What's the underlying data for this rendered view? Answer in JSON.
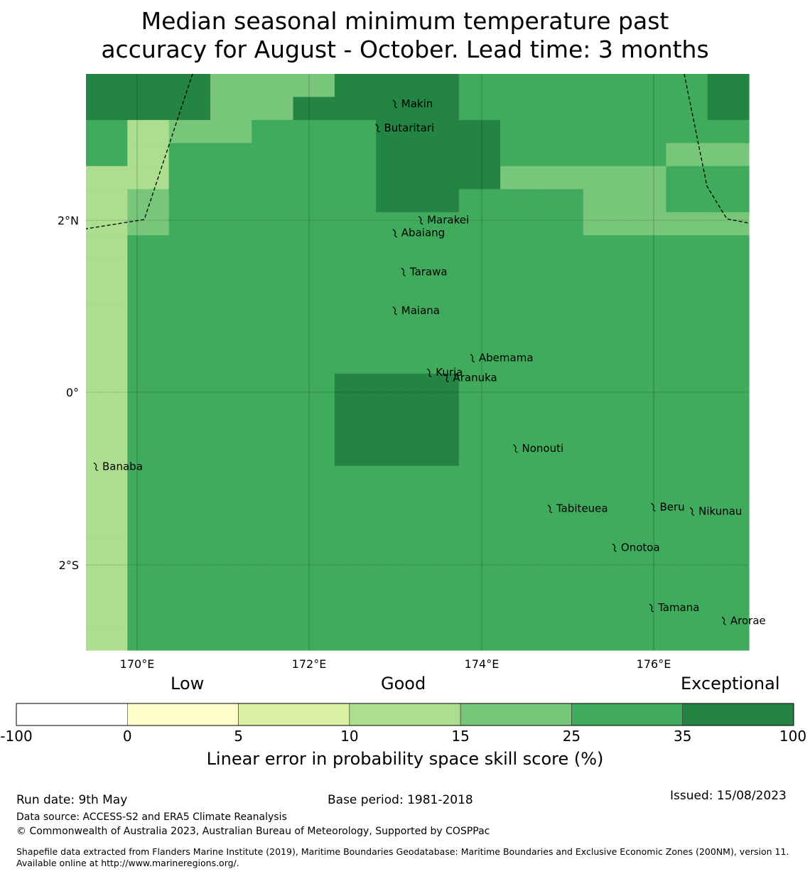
{
  "title_line1": "Median seasonal minimum temperature past",
  "title_line2": "accuracy for August - October. Lead time: 3 months",
  "axes": {
    "lon_ticks": [
      "170°E",
      "172°E",
      "174°E",
      "176°E"
    ],
    "lat_ticks": [
      "2°N",
      "0°",
      "2°S"
    ]
  },
  "colors": {
    "c_neg": "#ffffff",
    "c_0_5": "#ffffcc",
    "c_5_10": "#d9f0a3",
    "c_10_15": "#addd8e",
    "c_15_25": "#78c679",
    "c_25_35": "#41ab5d",
    "c_35_100": "#238443"
  },
  "grid_rows": [
    "6664446665555556",
    "6664466665555556",
    "5344555666555555",
    "5355555666555544",
    "3355555666444455",
    "3455555665554455",
    "3455555555554444",
    "3555555555555555",
    "3555555555555555",
    "3555555555555555",
    "3555555555555555",
    "3555555555555555",
    "3555555555555555",
    "3555556665555555",
    "3555556665555555",
    "3555556665555555",
    "3555556665555555",
    "3555555555555555",
    "3555555555555555",
    "3555555555555555",
    "3555555555555555",
    "3555555555555555",
    "3555555555555555",
    "3555555555555555",
    "3555555555555555"
  ],
  "islands": [
    {
      "name": "Makin",
      "lon": 173.0,
      "lat": 3.35
    },
    {
      "name": "Butaritari",
      "lon": 172.8,
      "lat": 3.07
    },
    {
      "name": "Marakei",
      "lon": 173.3,
      "lat": 2.0
    },
    {
      "name": "Abaiang",
      "lon": 173.0,
      "lat": 1.85
    },
    {
      "name": "Tarawa",
      "lon": 173.1,
      "lat": 1.4
    },
    {
      "name": "Maiana",
      "lon": 173.0,
      "lat": 0.95
    },
    {
      "name": "Abemama",
      "lon": 173.9,
      "lat": 0.4
    },
    {
      "name": "Kuria",
      "lon": 173.4,
      "lat": 0.23
    },
    {
      "name": "Aranuka",
      "lon": 173.6,
      "lat": 0.17
    },
    {
      "name": "Banaba",
      "lon": 169.53,
      "lat": -0.86
    },
    {
      "name": "Nonouti",
      "lon": 174.4,
      "lat": -0.65
    },
    {
      "name": "Beru",
      "lon": 176.0,
      "lat": -1.33
    },
    {
      "name": "Tabiteuea",
      "lon": 174.8,
      "lat": -1.35
    },
    {
      "name": "Nikunau",
      "lon": 176.45,
      "lat": -1.38
    },
    {
      "name": "Onotoa",
      "lon": 175.55,
      "lat": -1.8
    },
    {
      "name": "Tamana",
      "lon": 175.98,
      "lat": -2.5
    },
    {
      "name": "Arorae",
      "lon": 176.82,
      "lat": -2.65
    }
  ],
  "colorbar": {
    "heading_low": "Low",
    "heading_good": "Good",
    "heading_exceptional": "Exceptional",
    "ticks": [
      "-100",
      "0",
      "5",
      "10",
      "15",
      "25",
      "35",
      "100"
    ],
    "label": "Linear error in probability space skill score (%)"
  },
  "footer": {
    "run_date": "Run date: 9th May",
    "base_period": "Base period: 1981-2018",
    "issued": "Issued: 15/08/2023",
    "data_source": "Data source: ACCESS-S2 and ERA5 Climate Reanalysis",
    "copyright": "© Commonwealth of Australia 2023, Australian Bureau of Meteorology, Supported by COSPPac",
    "shapefile": "Shapefile data extracted from Flanders Marine Institute (2019), Maritime Boundaries Geodatabase: Maritime Boundaries and Exclusive Economic Zones (200NM), version 11. Available online at http://www.marineregions.org/."
  }
}
